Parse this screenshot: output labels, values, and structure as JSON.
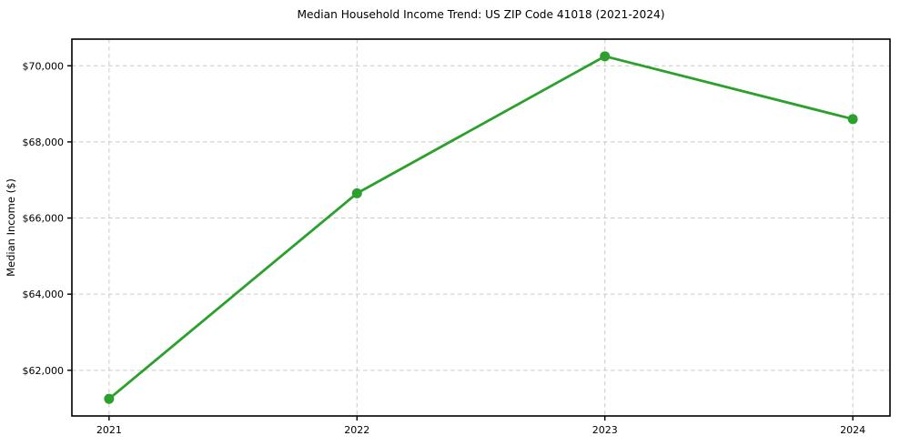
{
  "chart_data": {
    "type": "line",
    "title": "Median Household Income Trend: US ZIP Code 41018 (2021-2024)",
    "xlabel": "",
    "ylabel": "Median Income ($)",
    "categories": [
      2021,
      2022,
      2023,
      2024
    ],
    "series": [
      {
        "name": "Median Household Income",
        "values": [
          61250,
          66650,
          70250,
          68600
        ]
      }
    ],
    "x_tick_labels": [
      "2021",
      "2022",
      "2023",
      "2024"
    ],
    "y_ticks": [
      62000,
      64000,
      66000,
      68000,
      70000
    ],
    "y_tick_labels": [
      "$62,000",
      "$64,000",
      "$66,000",
      "$68,000",
      "$70,000"
    ],
    "xlim": [
      2020.85,
      2024.15
    ],
    "ylim": [
      60800,
      70700
    ],
    "grid": true,
    "legend": false,
    "colors": {
      "line": "#2ca02c",
      "marker": "#2ca02c",
      "grid": "#c9c9c9",
      "axis": "#000000",
      "text": "#000000",
      "background": "#ffffff"
    }
  }
}
